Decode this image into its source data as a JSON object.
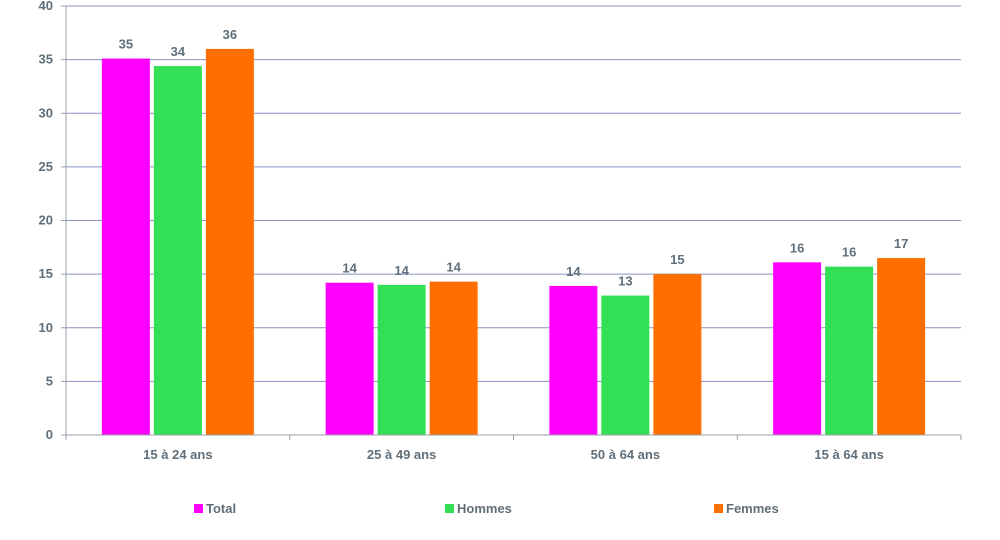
{
  "chart_data": {
    "type": "bar",
    "categories": [
      "15 à 24 ans",
      "25 à 49 ans",
      "50 à 64 ans",
      "15 à 64 ans"
    ],
    "series": [
      {
        "name": "Total",
        "color": "#ff00ff",
        "values": [
          35.1,
          14.2,
          13.9,
          16.1
        ],
        "labels": [
          "35",
          "14",
          "14",
          "16"
        ]
      },
      {
        "name": "Hommes",
        "color": "#33e055",
        "values": [
          34.4,
          14.0,
          13.0,
          15.7
        ],
        "labels": [
          "34",
          "14",
          "13",
          "16"
        ]
      },
      {
        "name": "Femmes",
        "color": "#ff6f00",
        "values": [
          36.0,
          14.3,
          15.0,
          16.5
        ],
        "labels": [
          "36",
          "14",
          "15",
          "17"
        ]
      }
    ],
    "yticks": [
      "0",
      "5",
      "10",
      "15",
      "20",
      "25",
      "30",
      "35",
      "40"
    ],
    "ylim": [
      0,
      40
    ],
    "grid": true,
    "gridline_color": "#8890c8",
    "axis_color": "#9aa0a8",
    "legend_placement": "bottom",
    "title": "",
    "xlabel": "",
    "ylabel": ""
  }
}
